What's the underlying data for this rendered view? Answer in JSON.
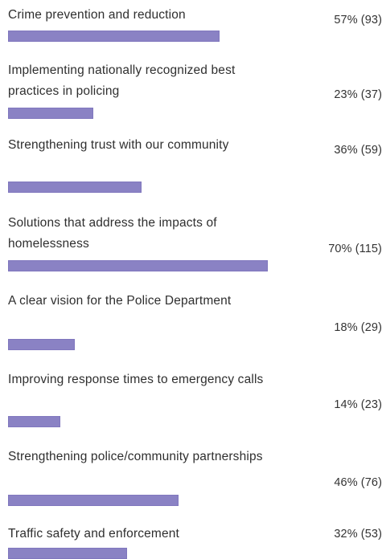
{
  "chart_data": {
    "type": "bar",
    "orientation": "horizontal",
    "bar_color": "#8a82c4",
    "items": [
      {
        "label": "Crime prevention and reduction",
        "percent": 57,
        "count": 93,
        "value_text": "57% (93)"
      },
      {
        "label": "Implementing nationally recognized best practices in policing",
        "percent": 23,
        "count": 37,
        "value_text": "23% (37)"
      },
      {
        "label": "Strengthening trust with our community",
        "percent": 36,
        "count": 59,
        "value_text": "36% (59)"
      },
      {
        "label": "Solutions that address the impacts of homelessness",
        "percent": 70,
        "count": 115,
        "value_text": "70% (115)"
      },
      {
        "label": "A clear vision for the Police Department",
        "percent": 18,
        "count": 29,
        "value_text": "18% (29)"
      },
      {
        "label": "Improving response times to emergency calls",
        "percent": 14,
        "count": 23,
        "value_text": "14% (23)"
      },
      {
        "label": "Strengthening police/community partnerships",
        "percent": 46,
        "count": 76,
        "value_text": "46% (76)"
      },
      {
        "label": "Traffic safety and enforcement",
        "percent": 32,
        "count": 53,
        "value_text": "32% (53)"
      }
    ]
  }
}
